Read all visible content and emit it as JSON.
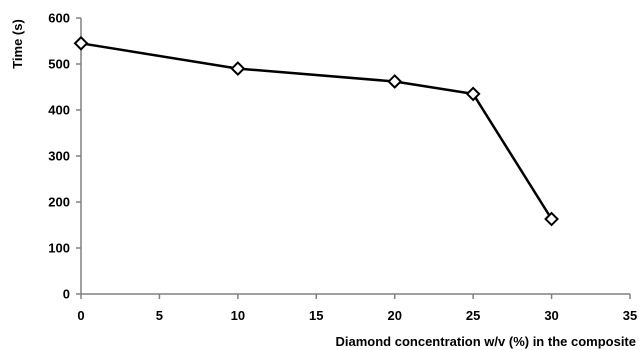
{
  "chart_data": {
    "type": "scatter",
    "title": "",
    "xlabel": "Diamond concentration w/v (%) in the composite",
    "ylabel": "Time (s)",
    "xlim": [
      0,
      35
    ],
    "ylim": [
      0,
      600
    ],
    "xticks": [
      0,
      5,
      10,
      15,
      20,
      25,
      30,
      35
    ],
    "yticks": [
      0,
      100,
      200,
      300,
      400,
      500,
      600
    ],
    "grid": false,
    "legend": "none",
    "marker": "diamond-open",
    "line": "straight",
    "colors": {
      "line": "#000000",
      "marker_fill": "#ffffff",
      "marker_stroke": "#000000"
    },
    "series": [
      {
        "x": [
          0,
          10,
          20,
          25,
          30
        ],
        "y": [
          545,
          490,
          462,
          435,
          163
        ]
      }
    ]
  }
}
